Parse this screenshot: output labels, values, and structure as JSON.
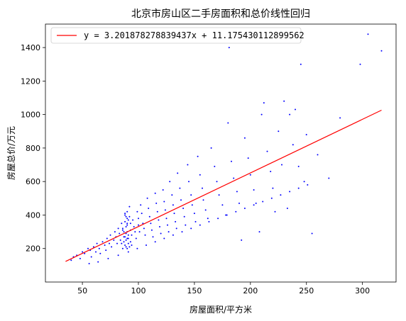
{
  "chart_data": {
    "type": "scatter",
    "title": "北京市房山区二手房面积和总价线性回归",
    "xlabel": "房屋面积/平方米",
    "ylabel": "房屋总价/万元",
    "xlim": [
      17,
      330
    ],
    "ylim": [
      0,
      1540
    ],
    "xticks": [
      50,
      100,
      150,
      200,
      250,
      300
    ],
    "yticks": [
      200,
      400,
      600,
      800,
      1000,
      1200,
      1400
    ],
    "grid": false,
    "legend": {
      "placement": "top-left",
      "entries": [
        {
          "label": "y = 3.201878278839437x + 11.175430112899562",
          "color": "#ff0000"
        }
      ]
    },
    "series": [
      {
        "type": "scatter",
        "color": "#0000ff",
        "points": [
          [
            40,
            130
          ],
          [
            42,
            150
          ],
          [
            45,
            160
          ],
          [
            48,
            140
          ],
          [
            50,
            180
          ],
          [
            52,
            170
          ],
          [
            55,
            200
          ],
          [
            57,
            190
          ],
          [
            58,
            150
          ],
          [
            60,
            210
          ],
          [
            62,
            180
          ],
          [
            63,
            230
          ],
          [
            65,
            200
          ],
          [
            66,
            170
          ],
          [
            68,
            240
          ],
          [
            70,
            220
          ],
          [
            71,
            190
          ],
          [
            72,
            260
          ],
          [
            74,
            230
          ],
          [
            75,
            280
          ],
          [
            76,
            210
          ],
          [
            78,
            250
          ],
          [
            79,
            300
          ],
          [
            80,
            270
          ],
          [
            81,
            230
          ],
          [
            82,
            320
          ],
          [
            83,
            290
          ],
          [
            84,
            250
          ],
          [
            85,
            350
          ],
          [
            86,
            310
          ],
          [
            87,
            270
          ],
          [
            88,
            400
          ],
          [
            88,
            360
          ],
          [
            89,
            330
          ],
          [
            89,
            290
          ],
          [
            90,
            420
          ],
          [
            90,
            380
          ],
          [
            90,
            340
          ],
          [
            90,
            300
          ],
          [
            91,
            260
          ],
          [
            92,
            450
          ],
          [
            92,
            390
          ],
          [
            93,
            350
          ],
          [
            93,
            310
          ],
          [
            94,
            280
          ],
          [
            95,
            370
          ],
          [
            96,
            330
          ],
          [
            97,
            300
          ],
          [
            98,
            260
          ],
          [
            99,
            420
          ],
          [
            100,
            380
          ],
          [
            100,
            340
          ],
          [
            101,
            300
          ],
          [
            102,
            460
          ],
          [
            103,
            410
          ],
          [
            104,
            350
          ],
          [
            105,
            320
          ],
          [
            106,
            280
          ],
          [
            108,
            500
          ],
          [
            109,
            440
          ],
          [
            110,
            390
          ],
          [
            111,
            350
          ],
          [
            112,
            310
          ],
          [
            113,
            270
          ],
          [
            115,
            530
          ],
          [
            116,
            470
          ],
          [
            117,
            420
          ],
          [
            118,
            370
          ],
          [
            119,
            330
          ],
          [
            120,
            290
          ],
          [
            122,
            550
          ],
          [
            123,
            480
          ],
          [
            124,
            430
          ],
          [
            125,
            380
          ],
          [
            126,
            340
          ],
          [
            127,
            300
          ],
          [
            128,
            600
          ],
          [
            130,
            520
          ],
          [
            131,
            460
          ],
          [
            132,
            410
          ],
          [
            133,
            360
          ],
          [
            134,
            320
          ],
          [
            135,
            650
          ],
          [
            137,
            560
          ],
          [
            138,
            490
          ],
          [
            140,
            440
          ],
          [
            141,
            390
          ],
          [
            142,
            340
          ],
          [
            144,
            700
          ],
          [
            145,
            600
          ],
          [
            147,
            520
          ],
          [
            148,
            460
          ],
          [
            150,
            410
          ],
          [
            151,
            360
          ],
          [
            153,
            750
          ],
          [
            155,
            640
          ],
          [
            157,
            560
          ],
          [
            158,
            490
          ],
          [
            160,
            430
          ],
          [
            162,
            380
          ],
          [
            165,
            800
          ],
          [
            168,
            690
          ],
          [
            170,
            600
          ],
          [
            172,
            520
          ],
          [
            175,
            460
          ],
          [
            178,
            400
          ],
          [
            180,
            950
          ],
          [
            181,
            1400
          ],
          [
            183,
            720
          ],
          [
            185,
            620
          ],
          [
            188,
            540
          ],
          [
            190,
            470
          ],
          [
            192,
            250
          ],
          [
            195,
            860
          ],
          [
            198,
            740
          ],
          [
            200,
            640
          ],
          [
            203,
            550
          ],
          [
            205,
            470
          ],
          [
            208,
            300
          ],
          [
            210,
            1000
          ],
          [
            212,
            1070
          ],
          [
            215,
            780
          ],
          [
            218,
            660
          ],
          [
            220,
            560
          ],
          [
            222,
            420
          ],
          [
            225,
            900
          ],
          [
            228,
            700
          ],
          [
            230,
            1080
          ],
          [
            233,
            440
          ],
          [
            235,
            1000
          ],
          [
            238,
            820
          ],
          [
            240,
            1030
          ],
          [
            243,
            690
          ],
          [
            245,
            1300
          ],
          [
            248,
            600
          ],
          [
            250,
            880
          ],
          [
            255,
            290
          ],
          [
            260,
            760
          ],
          [
            270,
            620
          ],
          [
            280,
            980
          ],
          [
            298,
            1300
          ],
          [
            305,
            1480
          ],
          [
            317,
            1380
          ],
          [
            56,
            110
          ],
          [
            64,
            120
          ],
          [
            73,
            140
          ],
          [
            82,
            160
          ],
          [
            91,
            180
          ],
          [
            99,
            200
          ],
          [
            107,
            220
          ],
          [
            115,
            240
          ],
          [
            123,
            260
          ],
          [
            131,
            280
          ],
          [
            139,
            300
          ],
          [
            147,
            320
          ],
          [
            155,
            340
          ],
          [
            163,
            360
          ],
          [
            171,
            380
          ],
          [
            179,
            400
          ],
          [
            187,
            420
          ],
          [
            195,
            440
          ],
          [
            203,
            460
          ],
          [
            211,
            480
          ],
          [
            219,
            500
          ],
          [
            227,
            520
          ],
          [
            235,
            540
          ],
          [
            243,
            560
          ],
          [
            251,
            580
          ],
          [
            88,
            220
          ],
          [
            89,
            210
          ],
          [
            90,
            200
          ],
          [
            91,
            230
          ],
          [
            87,
            240
          ],
          [
            86,
            200
          ],
          [
            92,
            210
          ],
          [
            85,
            230
          ],
          [
            93,
            240
          ],
          [
            94,
            220
          ],
          [
            90,
            260
          ],
          [
            91,
            280
          ],
          [
            89,
            250
          ],
          [
            88,
            270
          ],
          [
            87,
            300
          ],
          [
            86,
            320
          ],
          [
            90,
            350
          ],
          [
            91,
            370
          ],
          [
            89,
            390
          ],
          [
            88,
            410
          ]
        ]
      },
      {
        "type": "line",
        "color": "#ff0000",
        "x": [
          35,
          317
        ],
        "y": [
          123.24,
          1026.17
        ]
      }
    ]
  }
}
